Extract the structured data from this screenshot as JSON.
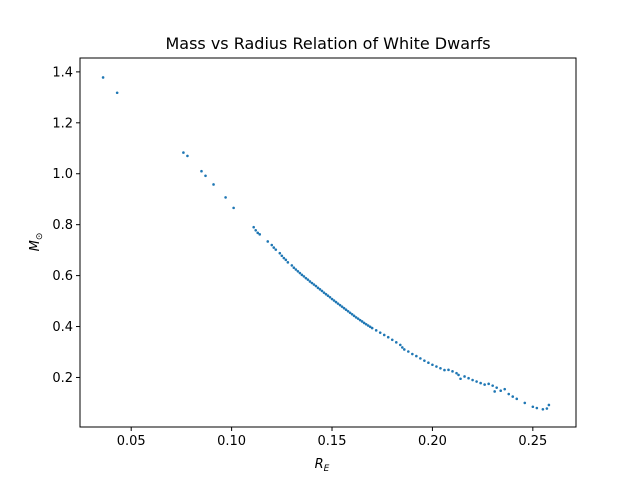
{
  "chart_data": {
    "type": "scatter",
    "title": "Mass vs Radius Relation of White Dwarfs",
    "xlabel": {
      "main": "R",
      "sub": "E"
    },
    "ylabel": {
      "main": "M",
      "sub": "⊙"
    },
    "xlim": [
      0.0245,
      0.2715
    ],
    "ylim": [
      0.0055,
      1.4545
    ],
    "xticks": [
      0.05,
      0.1,
      0.15,
      0.2,
      0.25
    ],
    "xtick_labels": [
      "0.05",
      "0.10",
      "0.15",
      "0.20",
      "0.25"
    ],
    "yticks": [
      0.2,
      0.4,
      0.6,
      0.8,
      1.0,
      1.2,
      1.4
    ],
    "ytick_labels": [
      "0.2",
      "0.4",
      "0.6",
      "0.8",
      "1.0",
      "1.2",
      "1.4"
    ],
    "grid": false,
    "marker_color": "#1f77b4",
    "series": [
      {
        "points": [
          [
            0.036,
            1.378
          ],
          [
            0.043,
            1.318
          ],
          [
            0.076,
            1.083
          ],
          [
            0.078,
            1.07
          ],
          [
            0.085,
            1.01
          ],
          [
            0.087,
            0.992
          ],
          [
            0.091,
            0.958
          ],
          [
            0.097,
            0.907
          ],
          [
            0.101,
            0.866
          ],
          [
            0.111,
            0.79
          ],
          [
            0.112,
            0.778
          ],
          [
            0.113,
            0.768
          ],
          [
            0.114,
            0.762
          ],
          [
            0.118,
            0.734
          ],
          [
            0.12,
            0.72
          ],
          [
            0.121,
            0.71
          ],
          [
            0.122,
            0.702
          ],
          [
            0.124,
            0.688
          ],
          [
            0.125,
            0.678
          ],
          [
            0.126,
            0.669
          ],
          [
            0.127,
            0.662
          ],
          [
            0.128,
            0.652
          ],
          [
            0.13,
            0.64
          ],
          [
            0.131,
            0.631
          ],
          [
            0.132,
            0.624
          ],
          [
            0.133,
            0.617
          ],
          [
            0.134,
            0.61
          ],
          [
            0.135,
            0.603
          ],
          [
            0.136,
            0.597
          ],
          [
            0.137,
            0.59
          ],
          [
            0.138,
            0.584
          ],
          [
            0.139,
            0.577
          ],
          [
            0.14,
            0.571
          ],
          [
            0.141,
            0.565
          ],
          [
            0.142,
            0.559
          ],
          [
            0.143,
            0.552
          ],
          [
            0.144,
            0.546
          ],
          [
            0.145,
            0.54
          ],
          [
            0.146,
            0.533
          ],
          [
            0.147,
            0.527
          ],
          [
            0.148,
            0.521
          ],
          [
            0.149,
            0.515
          ],
          [
            0.15,
            0.508
          ],
          [
            0.151,
            0.502
          ],
          [
            0.152,
            0.496
          ],
          [
            0.153,
            0.49
          ],
          [
            0.154,
            0.484
          ],
          [
            0.155,
            0.478
          ],
          [
            0.156,
            0.472
          ],
          [
            0.157,
            0.466
          ],
          [
            0.158,
            0.46
          ],
          [
            0.159,
            0.454
          ],
          [
            0.16,
            0.448
          ],
          [
            0.161,
            0.442
          ],
          [
            0.162,
            0.436
          ],
          [
            0.163,
            0.431
          ],
          [
            0.164,
            0.425
          ],
          [
            0.165,
            0.42
          ],
          [
            0.166,
            0.414
          ],
          [
            0.167,
            0.409
          ],
          [
            0.168,
            0.404
          ],
          [
            0.169,
            0.399
          ],
          [
            0.17,
            0.394
          ],
          [
            0.172,
            0.385
          ],
          [
            0.174,
            0.376
          ],
          [
            0.176,
            0.367
          ],
          [
            0.178,
            0.358
          ],
          [
            0.18,
            0.348
          ],
          [
            0.182,
            0.338
          ],
          [
            0.184,
            0.328
          ],
          [
            0.185,
            0.318
          ],
          [
            0.186,
            0.31
          ],
          [
            0.188,
            0.302
          ],
          [
            0.19,
            0.292
          ],
          [
            0.192,
            0.284
          ],
          [
            0.194,
            0.275
          ],
          [
            0.196,
            0.266
          ],
          [
            0.198,
            0.258
          ],
          [
            0.2,
            0.25
          ],
          [
            0.202,
            0.243
          ],
          [
            0.204,
            0.236
          ],
          [
            0.206,
            0.229
          ],
          [
            0.208,
            0.23
          ],
          [
            0.21,
            0.224
          ],
          [
            0.212,
            0.217
          ],
          [
            0.213,
            0.21
          ],
          [
            0.214,
            0.195
          ],
          [
            0.216,
            0.204
          ],
          [
            0.218,
            0.197
          ],
          [
            0.22,
            0.19
          ],
          [
            0.222,
            0.184
          ],
          [
            0.224,
            0.178
          ],
          [
            0.226,
            0.172
          ],
          [
            0.228,
            0.175
          ],
          [
            0.23,
            0.168
          ],
          [
            0.231,
            0.145
          ],
          [
            0.232,
            0.16
          ],
          [
            0.234,
            0.148
          ],
          [
            0.236,
            0.154
          ],
          [
            0.238,
            0.135
          ],
          [
            0.24,
            0.125
          ],
          [
            0.242,
            0.116
          ],
          [
            0.246,
            0.1
          ],
          [
            0.25,
            0.085
          ],
          [
            0.252,
            0.08
          ],
          [
            0.255,
            0.075
          ],
          [
            0.257,
            0.078
          ],
          [
            0.258,
            0.092
          ]
        ]
      }
    ]
  }
}
